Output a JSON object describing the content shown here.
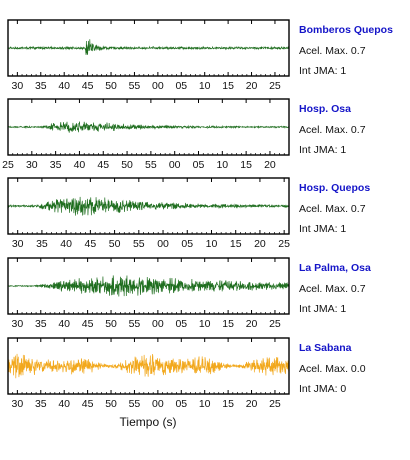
{
  "chart_data": {
    "type": "line",
    "xlabel": "Tiempo (s)",
    "colors": {
      "normal": "#1f6e1f",
      "idle": "#f2a81c",
      "station_label": "#1515c8",
      "frame": "#000000"
    },
    "panels": [
      {
        "station": "Bomberos Quepos",
        "acel_max": "Acel. Max. 0.7",
        "int_jma": "Int JMA: 1",
        "color": "#1f6e1f",
        "tick_labels": [
          "30",
          "35",
          "40",
          "45",
          "50",
          "55",
          "00",
          "05",
          "10",
          "15",
          "20",
          "25"
        ],
        "x_range_s": [
          28,
          88
        ],
        "first_tick_s": 30,
        "onset_s": 44.5,
        "noise_level": 0.05,
        "peak_level": 0.95,
        "decay": 0.9,
        "envelope_rise": 0.5
      },
      {
        "station": "Hosp. Osa",
        "acel_max": "Acel. Max. 0.7",
        "int_jma": "Int JMA: 1",
        "color": "#1f6e1f",
        "tick_labels": [
          "25",
          "30",
          "35",
          "40",
          "45",
          "50",
          "55",
          "00",
          "05",
          "10",
          "15",
          "20"
        ],
        "x_range_s": [
          25,
          84
        ],
        "first_tick_s": 25,
        "onset_s": 32,
        "noise_level": 0.03,
        "peak_level": 0.95,
        "decay": 0.13,
        "envelope_rise": 13
      },
      {
        "station": "Hosp. Quepos",
        "acel_max": "Acel. Max. 0.7",
        "int_jma": "Int JMA: 1",
        "color": "#1f6e1f",
        "tick_labels": [
          "30",
          "35",
          "40",
          "45",
          "50",
          "55",
          "00",
          "05",
          "10",
          "15",
          "20",
          "25"
        ],
        "x_range_s": [
          28,
          86
        ],
        "first_tick_s": 30,
        "onset_s": 34,
        "noise_level": 0.04,
        "peak_level": 0.95,
        "decay": 0.08,
        "envelope_rise": 11
      },
      {
        "station": "La Palma, Osa",
        "acel_max": "Acel. Max. 0.7",
        "int_jma": "Int JMA: 1",
        "color": "#1f6e1f",
        "tick_labels": [
          "30",
          "35",
          "40",
          "45",
          "50",
          "55",
          "00",
          "05",
          "10",
          "15",
          "20",
          "25"
        ],
        "x_range_s": [
          28,
          88
        ],
        "first_tick_s": 30,
        "onset_s": 33.5,
        "noise_level": 0.02,
        "peak_level": 0.85,
        "decay": 0.035,
        "envelope_rise": 20
      },
      {
        "station": "La Sabana",
        "acel_max": "Acel. Max. 0.0",
        "int_jma": "Int JMA: 0",
        "color": "#f2a81c",
        "tick_labels": [
          "30",
          "35",
          "40",
          "45",
          "50",
          "55",
          "00",
          "05",
          "10",
          "15",
          "20",
          "25"
        ],
        "x_range_s": [
          28,
          88
        ],
        "first_tick_s": 30,
        "onset_s": 28,
        "noise_level": 0.55,
        "peak_level": 0.55,
        "decay": 0,
        "envelope_rise": 0
      }
    ]
  }
}
